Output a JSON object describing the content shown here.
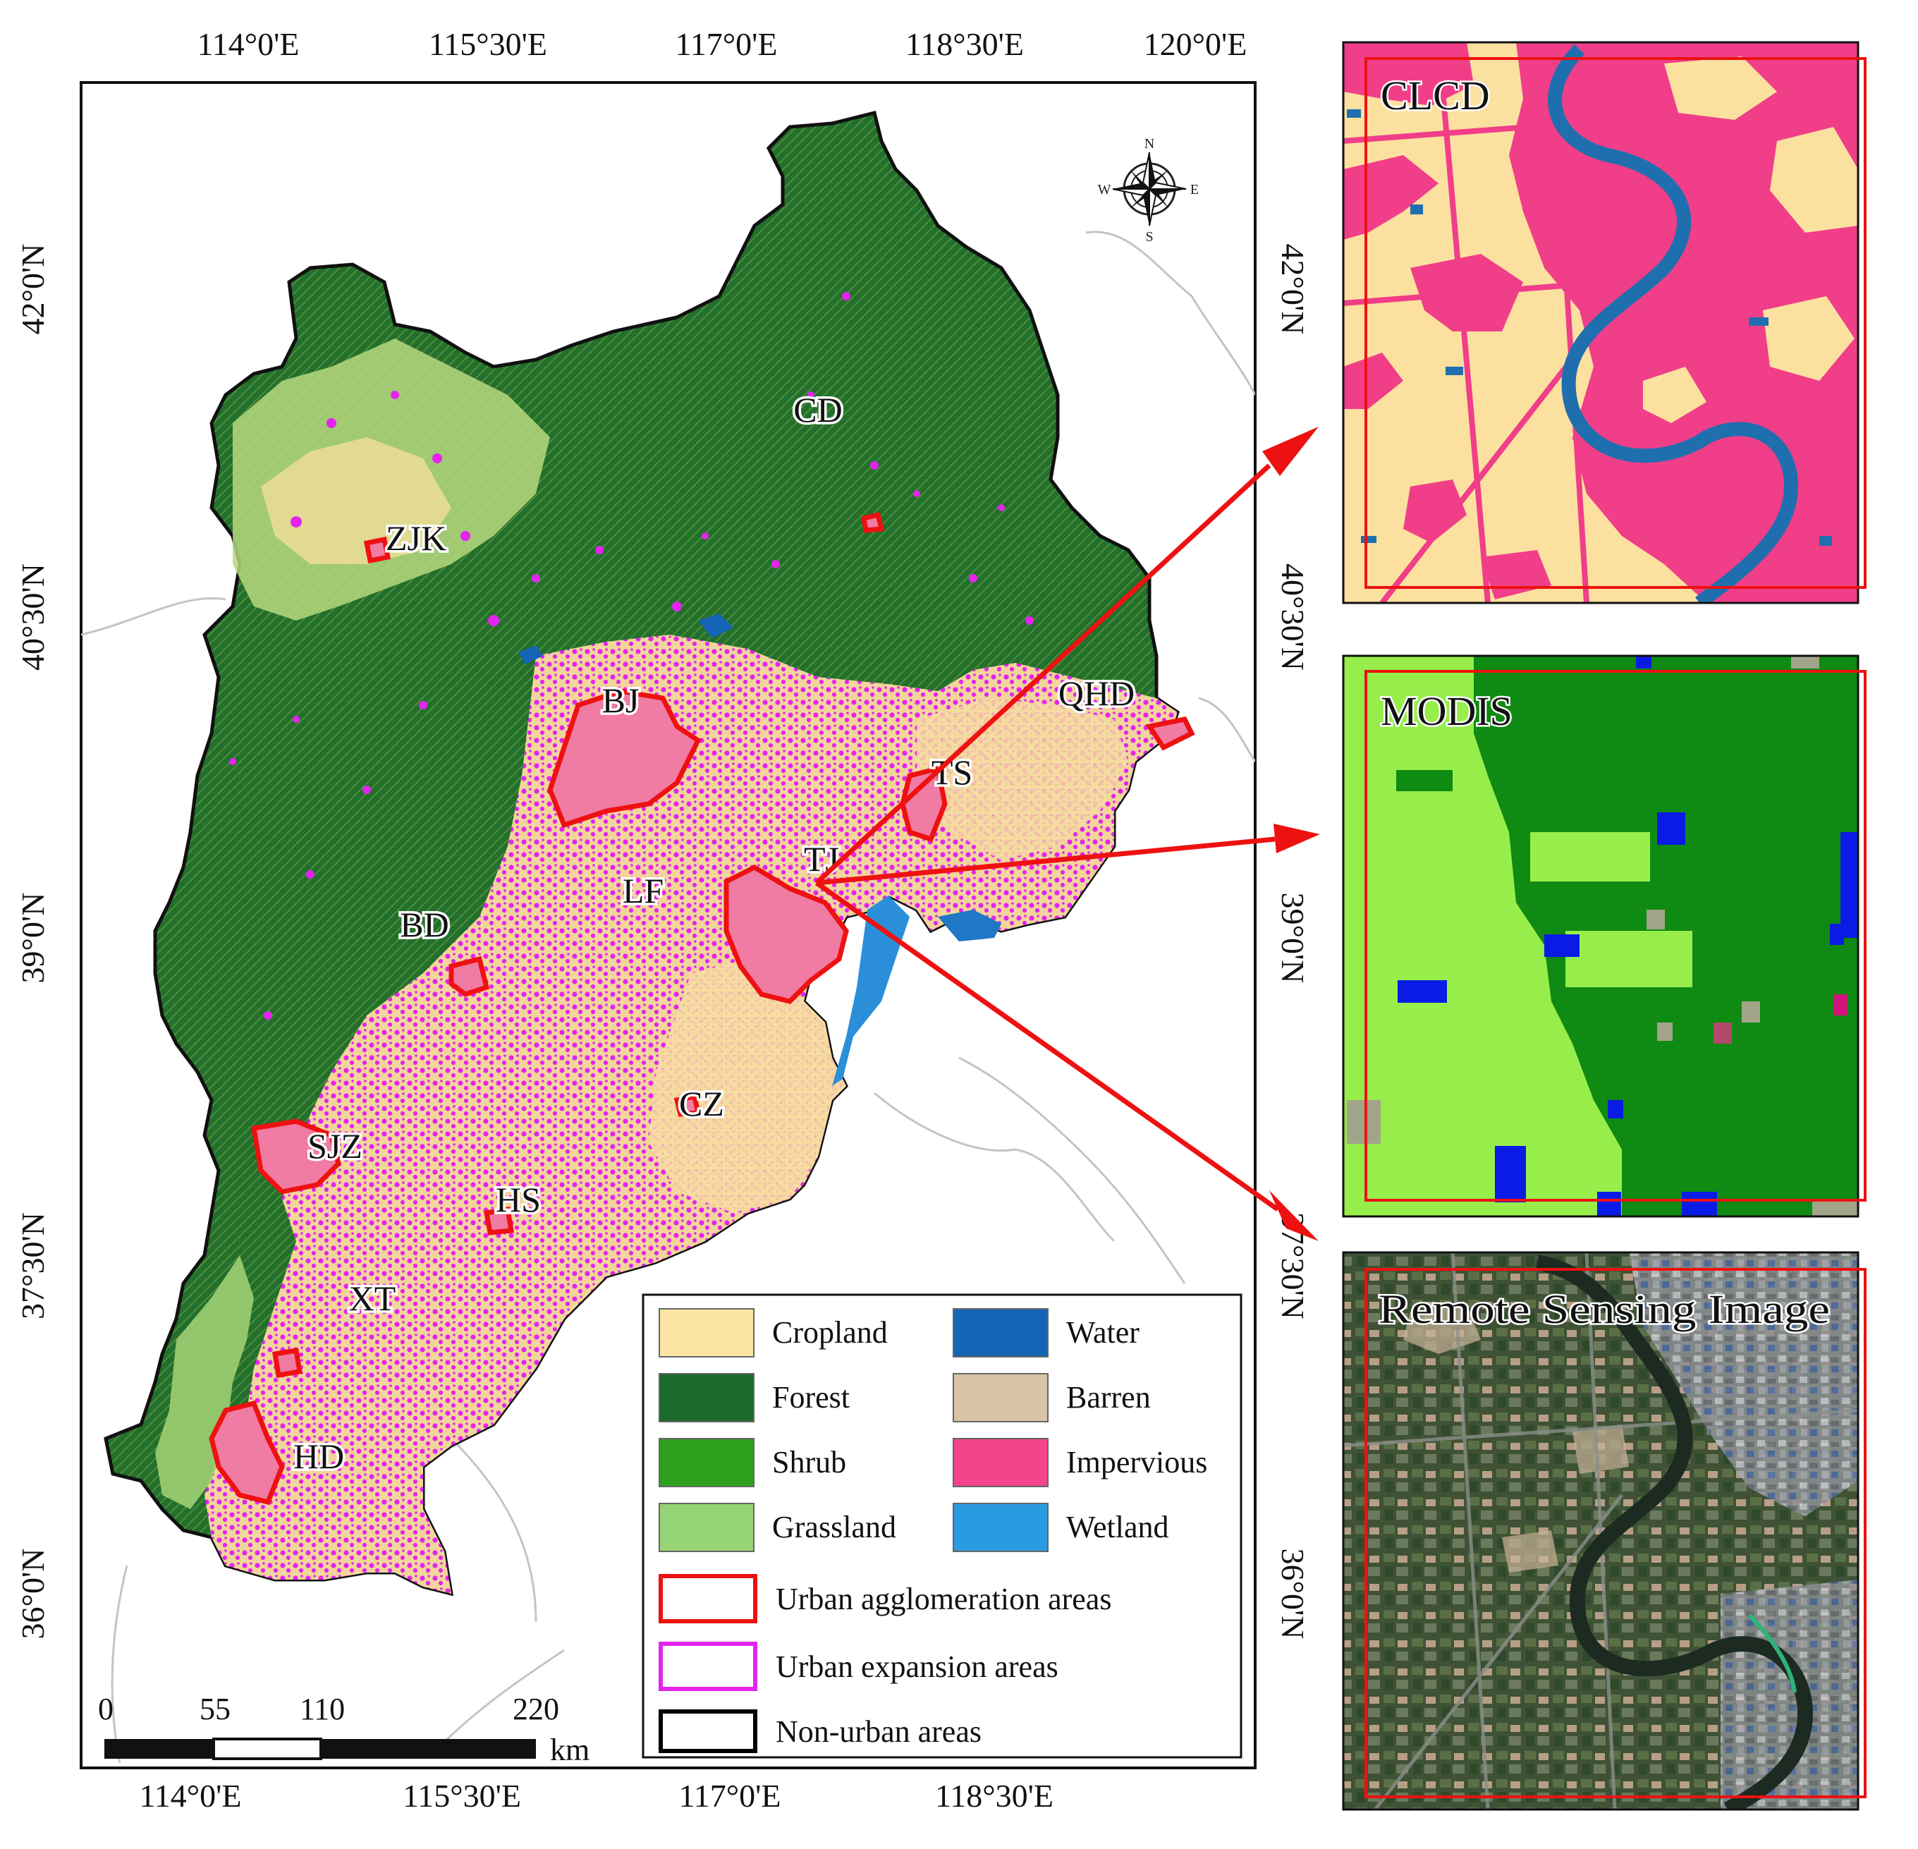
{
  "map": {
    "top_ticks": [
      "114°0'E",
      "115°30'E",
      "117°0'E",
      "118°30'E",
      "120°0'E"
    ],
    "bottom_ticks": [
      "114°0'E",
      "115°30'E",
      "117°0'E",
      "118°30'E"
    ],
    "left_ticks": [
      "42°0'N",
      "40°30'N",
      "39°0'N",
      "37°30'N",
      "36°0'N"
    ],
    "right_ticks": [
      "42°0'N",
      "40°30'N",
      "39°0'N",
      "37°30'N",
      "36°0'N"
    ],
    "cities": [
      {
        "id": "cd",
        "label": "CD"
      },
      {
        "id": "zjk",
        "label": "ZJK"
      },
      {
        "id": "bj",
        "label": "BJ"
      },
      {
        "id": "qhd",
        "label": "QHD"
      },
      {
        "id": "ts",
        "label": "TS"
      },
      {
        "id": "tj",
        "label": "TJ"
      },
      {
        "id": "lf",
        "label": "LF"
      },
      {
        "id": "bd",
        "label": "BD"
      },
      {
        "id": "cz",
        "label": "CZ"
      },
      {
        "id": "sjz",
        "label": "SJZ"
      },
      {
        "id": "hs",
        "label": "HS"
      },
      {
        "id": "xt",
        "label": "XT"
      },
      {
        "id": "hd",
        "label": "HD"
      }
    ],
    "compass": {
      "n": "N",
      "s": "S",
      "e": "E",
      "w": "W"
    },
    "scale_bar": {
      "labels": [
        "0",
        "55",
        "110",
        "220"
      ],
      "unit": "km"
    }
  },
  "legend": {
    "classes": [
      {
        "label": "Cropland",
        "color": "#fce6a4"
      },
      {
        "label": "Forest",
        "color": "#1b6b2a"
      },
      {
        "label": "Shrub",
        "color": "#2ea01e"
      },
      {
        "label": "Grassland",
        "color": "#96d475"
      },
      {
        "label": "Water",
        "color": "#1565b6"
      },
      {
        "label": "Barren",
        "color": "#d9c3a7"
      },
      {
        "label": "Impervious",
        "color": "#f4448c"
      },
      {
        "label": "Wetland",
        "color": "#2a9be1"
      }
    ],
    "areas": [
      {
        "label": "Urban agglomeration areas",
        "color": "#ee1111"
      },
      {
        "label": "Urban expansion areas",
        "color": "#e423f0"
      },
      {
        "label": "Non-urban areas",
        "color": "#000000"
      }
    ]
  },
  "panels": [
    {
      "id": "clcd",
      "title": "CLCD"
    },
    {
      "id": "modis",
      "title": "MODIS"
    },
    {
      "id": "rs",
      "title": "Remote Sensing Image"
    }
  ]
}
